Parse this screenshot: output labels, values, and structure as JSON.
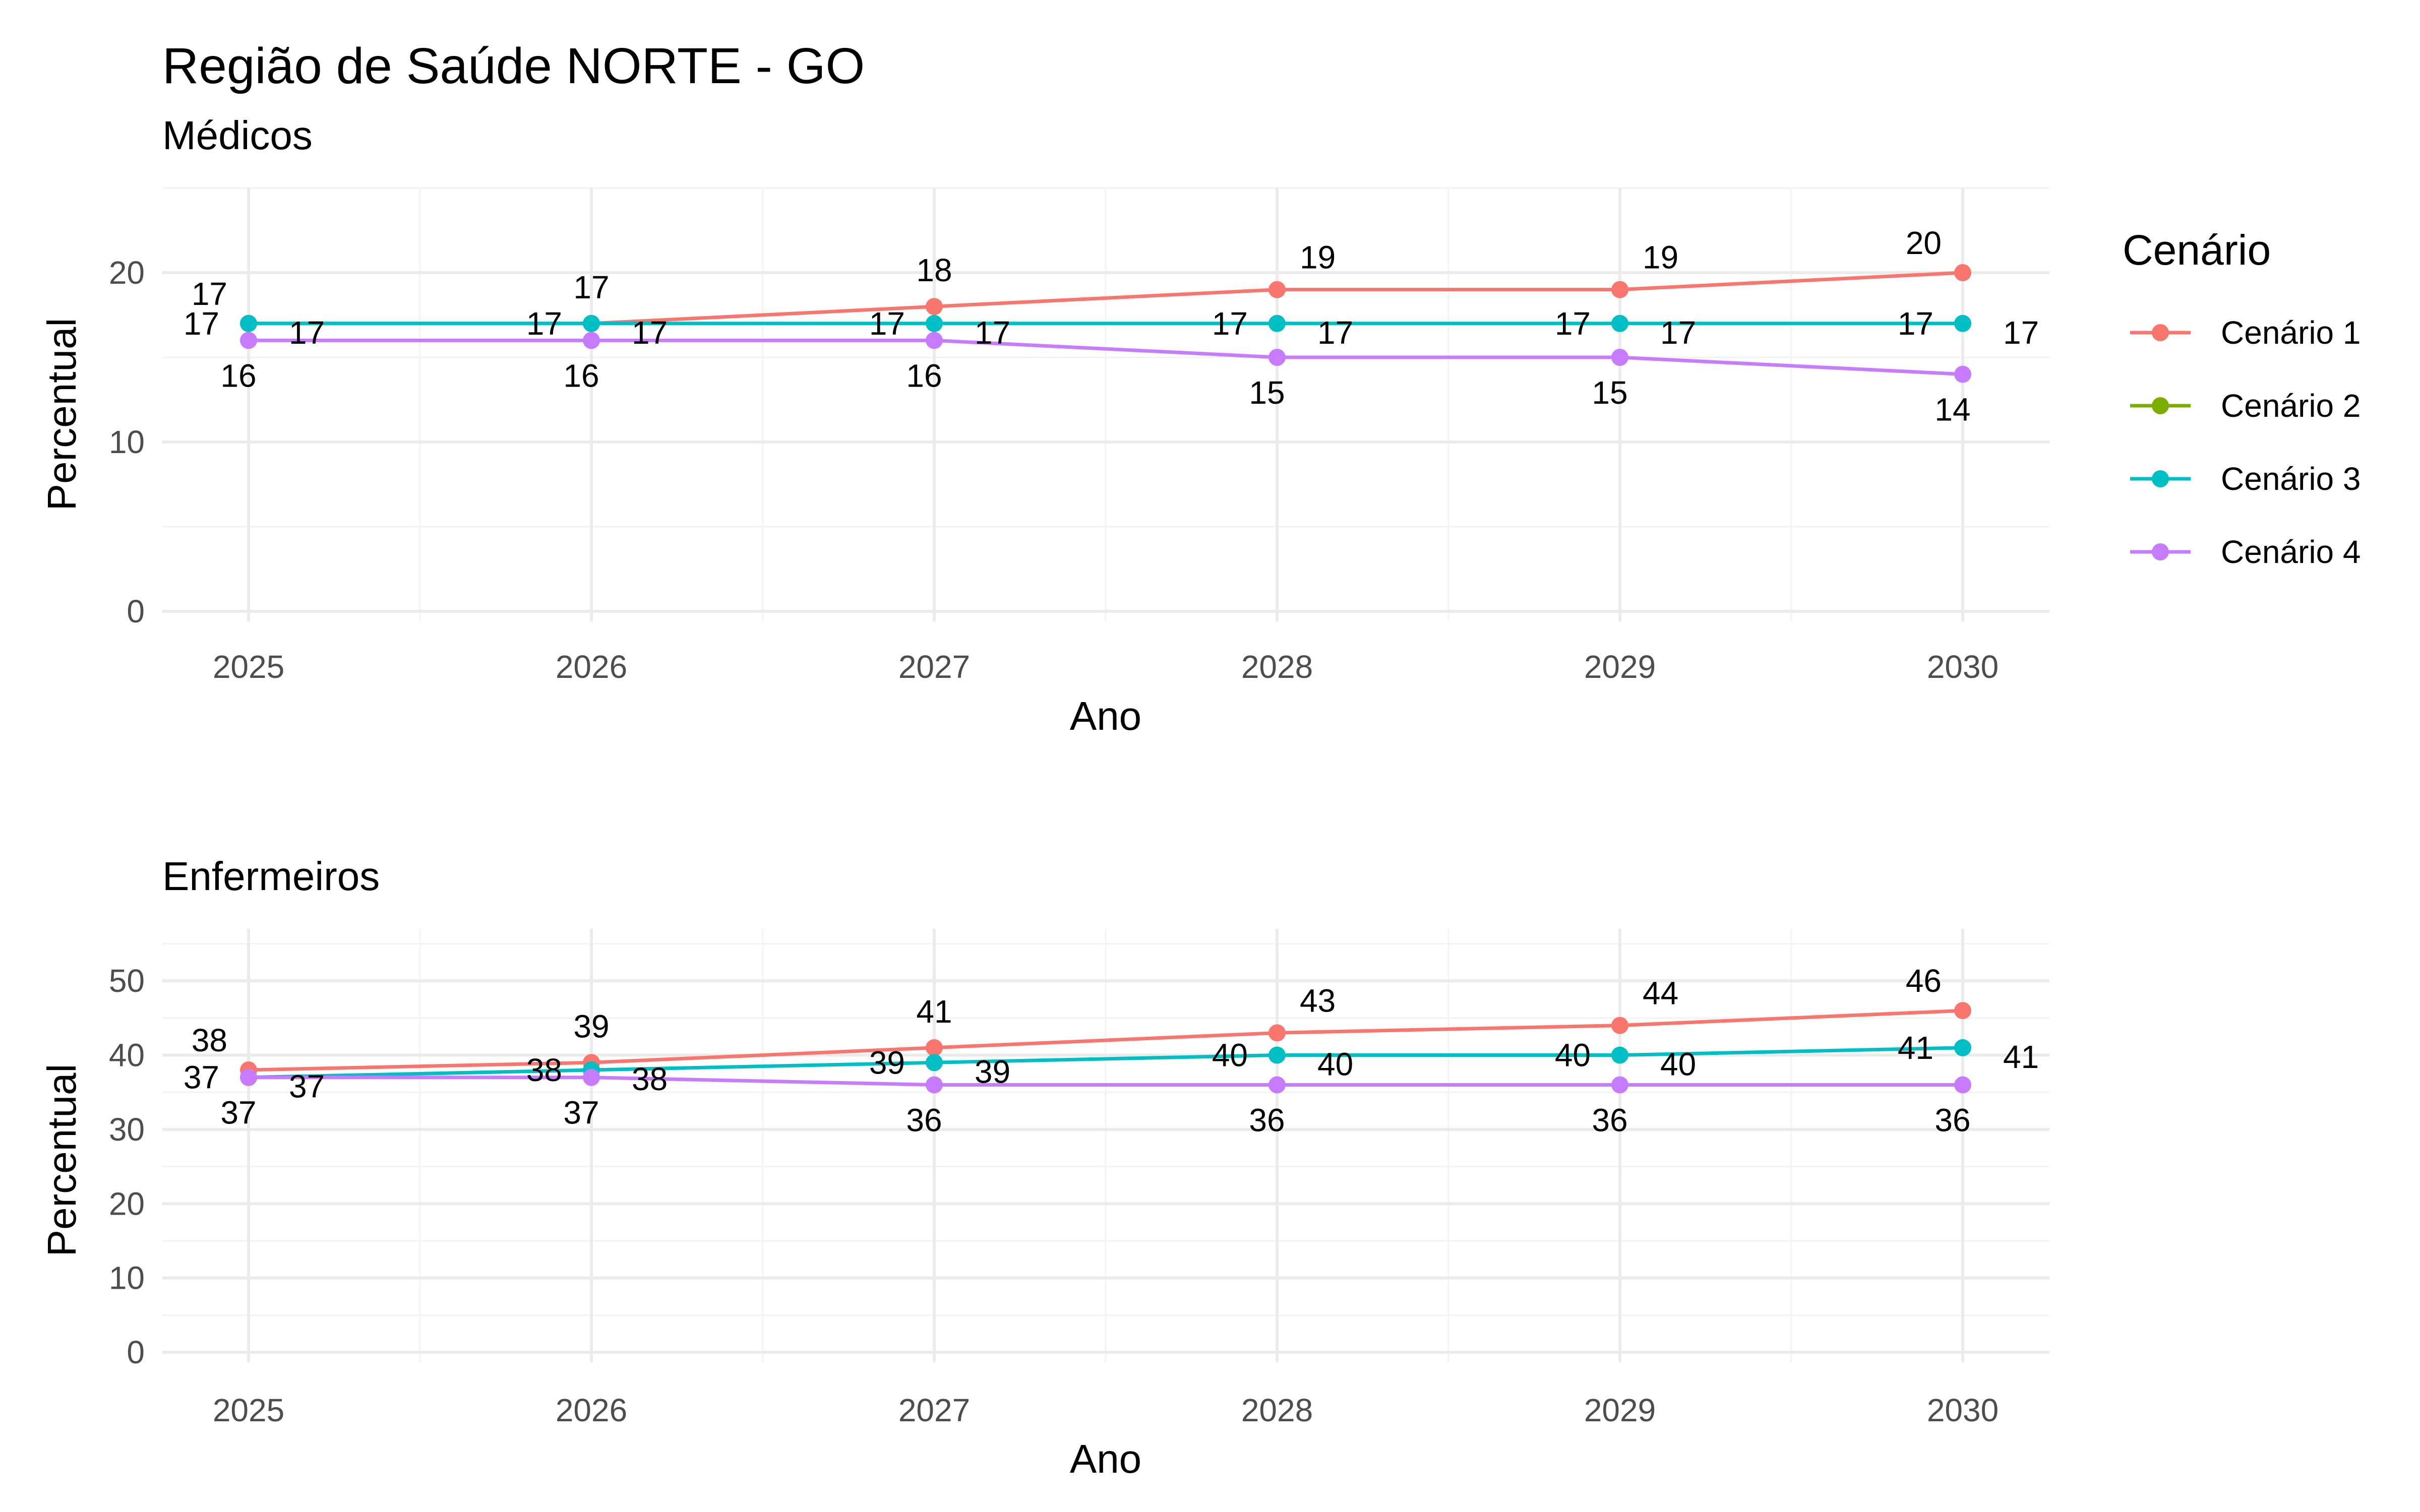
{
  "title": "Região de Saúde NORTE - GO",
  "chart_data": {
    "type": "line",
    "legend": {
      "title": "Cenário",
      "position": "right",
      "entries": [
        "Cenário 1",
        "Cenário 2",
        "Cenário 3",
        "Cenário 4"
      ]
    },
    "series_colors": {
      "Cenário 1": "#F8766D",
      "Cenário 2": "#7CAE00",
      "Cenário 3": "#00BFC4",
      "Cenário 4": "#C77CFF"
    },
    "panels": [
      {
        "key": "medicos",
        "subtitle": "Médicos",
        "xlabel": "Ano",
        "ylabel": "Percentual",
        "x": [
          "2025",
          "2026",
          "2027",
          "2028",
          "2029",
          "2030"
        ],
        "ylim": [
          0,
          25
        ],
        "yticks": [
          "0",
          "10",
          "20"
        ],
        "ytick_values": [
          0,
          10,
          20
        ],
        "series": [
          {
            "name": "Cenário 1",
            "values": [
              17,
              17,
              18,
              19,
              19,
              20
            ]
          },
          {
            "name": "Cenário 2",
            "values": [
              17,
              17,
              17,
              17,
              17,
              17
            ]
          },
          {
            "name": "Cenário 3",
            "values": [
              17,
              17,
              17,
              17,
              17,
              17
            ]
          },
          {
            "name": "Cenário 4",
            "values": [
              16,
              16,
              16,
              15,
              15,
              14
            ]
          }
        ]
      },
      {
        "key": "enfermeiros",
        "subtitle": "Enfermeiros",
        "xlabel": "Ano",
        "ylabel": "Percentual",
        "x": [
          "2025",
          "2026",
          "2027",
          "2028",
          "2029",
          "2030"
        ],
        "ylim": [
          0,
          57
        ],
        "yticks": [
          "0",
          "10",
          "20",
          "30",
          "40",
          "50"
        ],
        "ytick_values": [
          0,
          10,
          20,
          30,
          40,
          50
        ],
        "series": [
          {
            "name": "Cenário 1",
            "values": [
              38,
              39,
              41,
              43,
              44,
              46
            ]
          },
          {
            "name": "Cenário 2",
            "values": [
              37,
              38,
              39,
              40,
              40,
              41
            ]
          },
          {
            "name": "Cenário 3",
            "values": [
              37,
              38,
              39,
              40,
              40,
              41
            ]
          },
          {
            "name": "Cenário 4",
            "values": [
              37,
              37,
              36,
              36,
              36,
              36
            ]
          }
        ]
      }
    ]
  }
}
